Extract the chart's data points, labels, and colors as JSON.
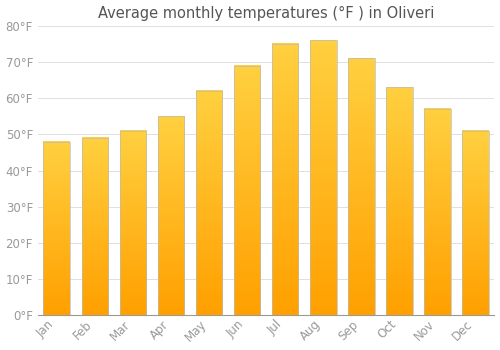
{
  "title": "Average monthly temperatures (°F ) in Oliveri",
  "months": [
    "Jan",
    "Feb",
    "Mar",
    "Apr",
    "May",
    "Jun",
    "Jul",
    "Aug",
    "Sep",
    "Oct",
    "Nov",
    "Dec"
  ],
  "values": [
    48,
    49,
    51,
    55,
    62,
    69,
    75,
    76,
    71,
    63,
    57,
    51
  ],
  "bar_color_top": "#FFD040",
  "bar_color_bottom": "#FFA000",
  "bar_color_edge": "#C8A000",
  "background_color": "#FFFFFF",
  "grid_color": "#E0E0E0",
  "text_color": "#999999",
  "title_color": "#555555",
  "ylim": [
    0,
    80
  ],
  "yticks": [
    0,
    10,
    20,
    30,
    40,
    50,
    60,
    70,
    80
  ],
  "title_fontsize": 10.5,
  "tick_fontsize": 8.5
}
